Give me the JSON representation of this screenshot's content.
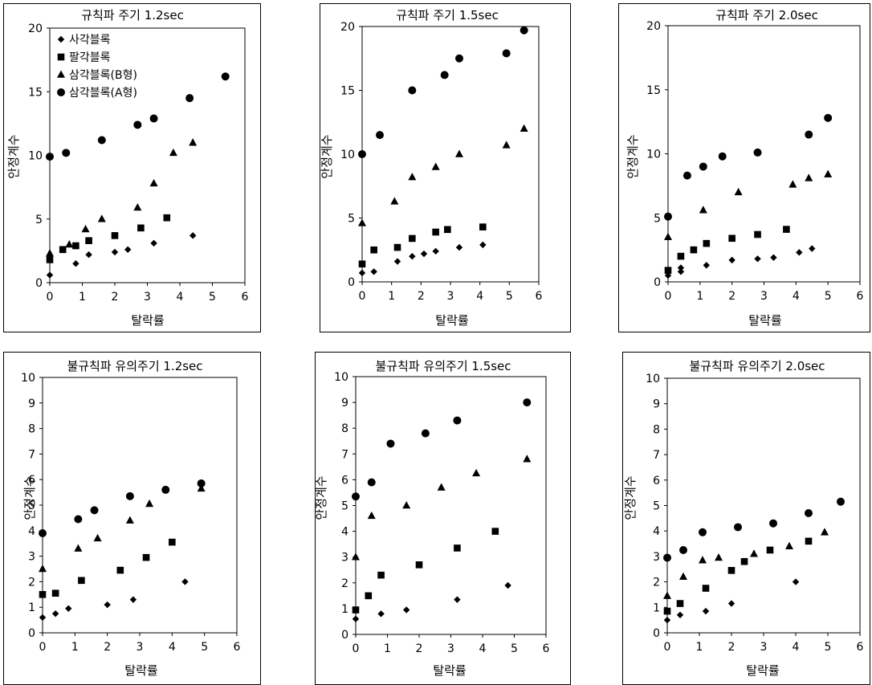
{
  "chart_data": [
    {
      "type": "scatter",
      "title": "규칙파 주기 1.2sec",
      "xlabel": "탈락률",
      "ylabel": "안정계수",
      "xlim": [
        0,
        6
      ],
      "ylim": [
        0,
        20
      ],
      "xticks": [
        "0",
        "1",
        "2",
        "3",
        "4",
        "5",
        "6"
      ],
      "yticks": [
        "0",
        "5",
        "10",
        "15",
        "20"
      ],
      "legend": "top-left",
      "series": [
        {
          "name": "사각블록",
          "marker": "diamond",
          "points": [
            [
              0,
              0.6
            ],
            [
              0.8,
              1.5
            ],
            [
              1.2,
              2.2
            ],
            [
              2,
              2.4
            ],
            [
              2.4,
              2.6
            ],
            [
              3.2,
              3.1
            ],
            [
              4.4,
              3.7
            ]
          ]
        },
        {
          "name": "팔각블록",
          "marker": "square",
          "points": [
            [
              0,
              1.8
            ],
            [
              0.4,
              2.6
            ],
            [
              0.8,
              2.9
            ],
            [
              1.2,
              3.3
            ],
            [
              2,
              3.7
            ],
            [
              2.8,
              4.3
            ],
            [
              3.6,
              5.1
            ]
          ]
        },
        {
          "name": "삼각블록(B형)",
          "marker": "triangle",
          "points": [
            [
              0,
              2.3
            ],
            [
              0.6,
              3.0
            ],
            [
              1.1,
              4.2
            ],
            [
              1.6,
              5.0
            ],
            [
              2.7,
              5.9
            ],
            [
              3.2,
              7.8
            ],
            [
              3.8,
              10.2
            ],
            [
              4.4,
              11.0
            ]
          ]
        },
        {
          "name": "삼각블록(A형)",
          "marker": "circle",
          "points": [
            [
              0,
              9.9
            ],
            [
              0.5,
              10.2
            ],
            [
              1.6,
              11.2
            ],
            [
              2.7,
              12.4
            ],
            [
              3.2,
              12.9
            ],
            [
              4.3,
              14.5
            ],
            [
              5.4,
              16.2
            ]
          ]
        }
      ]
    },
    {
      "type": "scatter",
      "title": "규칙파 주기 1.5sec",
      "xlabel": "탈락률",
      "ylabel": "안정계수",
      "xlim": [
        0,
        6
      ],
      "ylim": [
        0,
        20
      ],
      "xticks": [
        "0",
        "1",
        "2",
        "3",
        "4",
        "5",
        "6"
      ],
      "yticks": [
        "0",
        "5",
        "10",
        "15",
        "20"
      ],
      "series": [
        {
          "name": "사각블록",
          "marker": "diamond",
          "points": [
            [
              0,
              0.7
            ],
            [
              0.4,
              0.8
            ],
            [
              1.2,
              1.6
            ],
            [
              1.7,
              2.0
            ],
            [
              2.1,
              2.2
            ],
            [
              2.5,
              2.4
            ],
            [
              3.3,
              2.7
            ],
            [
              4.1,
              2.9
            ]
          ]
        },
        {
          "name": "팔각블록",
          "marker": "square",
          "points": [
            [
              0,
              1.4
            ],
            [
              0.4,
              2.5
            ],
            [
              1.2,
              2.7
            ],
            [
              1.7,
              3.4
            ],
            [
              2.5,
              3.9
            ],
            [
              2.9,
              4.1
            ],
            [
              4.1,
              4.3
            ]
          ]
        },
        {
          "name": "삼각블록(B형)",
          "marker": "triangle",
          "points": [
            [
              0,
              4.6
            ],
            [
              1.1,
              6.3
            ],
            [
              1.7,
              8.2
            ],
            [
              2.5,
              9.0
            ],
            [
              3.3,
              10.0
            ],
            [
              4.9,
              10.7
            ],
            [
              5.5,
              12.0
            ]
          ]
        },
        {
          "name": "삼각블록(A형)",
          "marker": "circle",
          "points": [
            [
              0,
              10.0
            ],
            [
              0.6,
              11.5
            ],
            [
              1.7,
              15.0
            ],
            [
              2.8,
              16.2
            ],
            [
              3.3,
              17.5
            ],
            [
              4.9,
              17.9
            ],
            [
              5.5,
              19.7
            ]
          ]
        }
      ]
    },
    {
      "type": "scatter",
      "title": "규칙파 주기 2.0sec",
      "xlabel": "탈락률",
      "ylabel": "안정계수",
      "xlim": [
        0,
        6
      ],
      "ylim": [
        0,
        20
      ],
      "xticks": [
        "0",
        "1",
        "2",
        "3",
        "4",
        "5",
        "6"
      ],
      "yticks": [
        "0",
        "5",
        "10",
        "15",
        "20"
      ],
      "series": [
        {
          "name": "사각블록",
          "marker": "diamond",
          "points": [
            [
              0,
              0.5
            ],
            [
              0.4,
              0.8
            ],
            [
              0.4,
              1.1
            ],
            [
              1.2,
              1.3
            ],
            [
              2,
              1.7
            ],
            [
              2.8,
              1.8
            ],
            [
              3.3,
              1.9
            ],
            [
              4.1,
              2.3
            ],
            [
              4.5,
              2.6
            ]
          ]
        },
        {
          "name": "팔각블록",
          "marker": "square",
          "points": [
            [
              0,
              0.9
            ],
            [
              0.4,
              2.0
            ],
            [
              0.8,
              2.5
            ],
            [
              1.2,
              3.0
            ],
            [
              2,
              3.4
            ],
            [
              2.8,
              3.7
            ],
            [
              3.7,
              4.1
            ]
          ]
        },
        {
          "name": "삼각블록(B형)",
          "marker": "triangle",
          "points": [
            [
              0,
              3.5
            ],
            [
              1.1,
              5.6
            ],
            [
              2.2,
              7.0
            ],
            [
              3.9,
              7.6
            ],
            [
              4.4,
              8.1
            ],
            [
              5,
              8.4
            ]
          ]
        },
        {
          "name": "삼각블록(A형)",
          "marker": "circle",
          "points": [
            [
              0,
              5.1
            ],
            [
              0.6,
              8.3
            ],
            [
              1.1,
              9.0
            ],
            [
              1.7,
              9.8
            ],
            [
              2.8,
              10.1
            ],
            [
              4.4,
              11.5
            ],
            [
              5,
              12.8
            ]
          ]
        }
      ]
    },
    {
      "type": "scatter",
      "title": "불규칙파 유의주기 1.2sec",
      "xlabel": "탈락률",
      "ylabel": "안정계수",
      "xlim": [
        0,
        6
      ],
      "ylim": [
        0,
        10
      ],
      "xticks": [
        "0",
        "1",
        "2",
        "3",
        "4",
        "5",
        "6"
      ],
      "yticks": [
        "0",
        "1",
        "2",
        "3",
        "4",
        "5",
        "6",
        "7",
        "8",
        "9",
        "10"
      ],
      "series": [
        {
          "name": "사각블록",
          "marker": "diamond",
          "points": [
            [
              0,
              0.6
            ],
            [
              0.4,
              0.75
            ],
            [
              0.8,
              0.95
            ],
            [
              2,
              1.1
            ],
            [
              2.8,
              1.3
            ],
            [
              4.4,
              2.0
            ]
          ]
        },
        {
          "name": "팔각블록",
          "marker": "square",
          "points": [
            [
              0,
              1.5
            ],
            [
              0.4,
              1.55
            ],
            [
              1.2,
              2.05
            ],
            [
              2.4,
              2.45
            ],
            [
              3.2,
              2.95
            ],
            [
              4,
              3.55
            ]
          ]
        },
        {
          "name": "삼각블록(B형)",
          "marker": "triangle",
          "points": [
            [
              0,
              2.5
            ],
            [
              1.1,
              3.3
            ],
            [
              1.7,
              3.7
            ],
            [
              2.7,
              4.4
            ],
            [
              3.3,
              5.05
            ],
            [
              4.9,
              5.65
            ]
          ]
        },
        {
          "name": "삼각블록(A형)",
          "marker": "circle",
          "points": [
            [
              0,
              3.9
            ],
            [
              1.1,
              4.45
            ],
            [
              1.6,
              4.8
            ],
            [
              2.7,
              5.35
            ],
            [
              3.8,
              5.6
            ],
            [
              4.9,
              5.85
            ]
          ]
        }
      ]
    },
    {
      "type": "scatter",
      "title": "불규칙파 유의주기 1.5sec",
      "xlabel": "탈락률",
      "ylabel": "안정계수",
      "xlim": [
        0,
        6
      ],
      "ylim": [
        0,
        10
      ],
      "xticks": [
        "0",
        "1",
        "2",
        "3",
        "4",
        "5",
        "6"
      ],
      "yticks": [
        "0",
        "1",
        "2",
        "3",
        "4",
        "5",
        "6",
        "7",
        "8",
        "9",
        "10"
      ],
      "series": [
        {
          "name": "사각블록",
          "marker": "diamond",
          "points": [
            [
              0,
              0.6
            ],
            [
              0.8,
              0.8
            ],
            [
              1.6,
              0.95
            ],
            [
              3.2,
              1.35
            ],
            [
              4.8,
              1.9
            ]
          ]
        },
        {
          "name": "팔각블록",
          "marker": "square",
          "points": [
            [
              0,
              0.95
            ],
            [
              0.4,
              1.5
            ],
            [
              0.8,
              2.3
            ],
            [
              2,
              2.7
            ],
            [
              3.2,
              3.35
            ],
            [
              4.4,
              4.0
            ]
          ]
        },
        {
          "name": "삼각블록(B형)",
          "marker": "triangle",
          "points": [
            [
              0,
              3.0
            ],
            [
              0.5,
              4.6
            ],
            [
              1.6,
              5.0
            ],
            [
              2.7,
              5.7
            ],
            [
              3.8,
              6.25
            ],
            [
              5.4,
              6.8
            ]
          ]
        },
        {
          "name": "삼각블록(A형)",
          "marker": "circle",
          "points": [
            [
              0,
              5.35
            ],
            [
              0.5,
              5.9
            ],
            [
              1.1,
              7.4
            ],
            [
              2.2,
              7.8
            ],
            [
              3.2,
              8.3
            ],
            [
              5.4,
              9.0
            ]
          ]
        }
      ]
    },
    {
      "type": "scatter",
      "title": "불규칙파 유의주기 2.0sec",
      "xlabel": "탈락률",
      "ylabel": "안정계수",
      "xlim": [
        0,
        6
      ],
      "ylim": [
        0,
        10
      ],
      "xticks": [
        "0",
        "1",
        "2",
        "3",
        "4",
        "5",
        "6"
      ],
      "yticks": [
        "0",
        "1",
        "2",
        "3",
        "4",
        "5",
        "6",
        "7",
        "8",
        "9",
        "10"
      ],
      "series": [
        {
          "name": "사각블록",
          "marker": "diamond",
          "points": [
            [
              0,
              0.5
            ],
            [
              0.4,
              0.7
            ],
            [
              1.2,
              0.85
            ],
            [
              2,
              1.15
            ],
            [
              4,
              2.0
            ]
          ]
        },
        {
          "name": "팔각블록",
          "marker": "square",
          "points": [
            [
              0,
              0.85
            ],
            [
              0.4,
              1.15
            ],
            [
              1.2,
              1.75
            ],
            [
              2,
              2.45
            ],
            [
              2.4,
              2.8
            ],
            [
              3.2,
              3.25
            ],
            [
              4.4,
              3.6
            ]
          ]
        },
        {
          "name": "삼각블록(B형)",
          "marker": "triangle",
          "points": [
            [
              0,
              1.45
            ],
            [
              0.5,
              2.2
            ],
            [
              1.1,
              2.85
            ],
            [
              1.6,
              2.95
            ],
            [
              2.7,
              3.1
            ],
            [
              3.8,
              3.4
            ],
            [
              4.9,
              3.95
            ]
          ]
        },
        {
          "name": "삼각블록(A형)",
          "marker": "circle",
          "points": [
            [
              0,
              2.95
            ],
            [
              0.5,
              3.25
            ],
            [
              1.1,
              3.95
            ],
            [
              2.2,
              4.15
            ],
            [
              3.3,
              4.3
            ],
            [
              4.4,
              4.7
            ],
            [
              5.4,
              5.15
            ]
          ]
        }
      ]
    }
  ]
}
